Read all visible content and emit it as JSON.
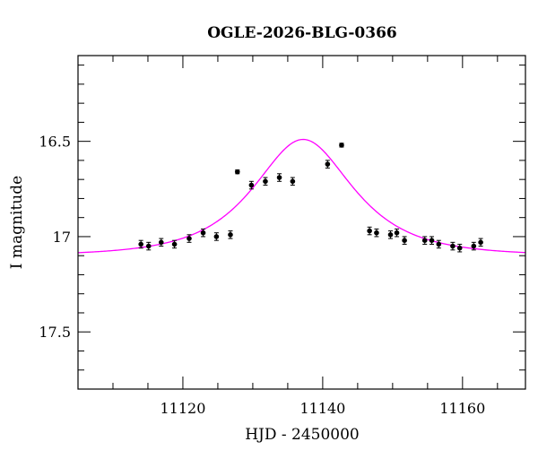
{
  "chart_data": {
    "type": "scatter",
    "title": "OGLE-2026-BLG-0366",
    "xlabel": "HJD - 2450000",
    "ylabel": "I magnitude",
    "xlim": [
      11105,
      11169
    ],
    "ylim": [
      17.8,
      16.05
    ],
    "y_inverted": true,
    "x_ticks": [
      11120,
      11140,
      11160
    ],
    "x_tick_labels": [
      "11120",
      "11140",
      "11160"
    ],
    "y_ticks": [
      16.5,
      17,
      17.5
    ],
    "y_tick_labels": [
      "16.5",
      "17",
      "17.5"
    ],
    "grid": false,
    "colors": {
      "model": "#ff00ff",
      "points": "#000000"
    },
    "series": [
      {
        "type": "scatter",
        "points": [
          {
            "x": 11114.0,
            "y": 17.04,
            "err": 0.02
          },
          {
            "x": 11115.1,
            "y": 17.05,
            "err": 0.02
          },
          {
            "x": 11116.9,
            "y": 17.03,
            "err": 0.02
          },
          {
            "x": 11118.8,
            "y": 17.04,
            "err": 0.02
          },
          {
            "x": 11120.9,
            "y": 17.01,
            "err": 0.02
          },
          {
            "x": 11122.9,
            "y": 16.98,
            "err": 0.02
          },
          {
            "x": 11124.8,
            "y": 17.0,
            "err": 0.02
          },
          {
            "x": 11126.8,
            "y": 16.99,
            "err": 0.02
          },
          {
            "x": 11127.8,
            "y": 16.66,
            "err": 0.01
          },
          {
            "x": 11129.8,
            "y": 16.73,
            "err": 0.02
          },
          {
            "x": 11131.8,
            "y": 16.71,
            "err": 0.02
          },
          {
            "x": 11133.8,
            "y": 16.69,
            "err": 0.02
          },
          {
            "x": 11135.7,
            "y": 16.71,
            "err": 0.02
          },
          {
            "x": 11140.7,
            "y": 16.62,
            "err": 0.02
          },
          {
            "x": 11142.7,
            "y": 16.52,
            "err": 0.01
          },
          {
            "x": 11146.7,
            "y": 16.97,
            "err": 0.02
          },
          {
            "x": 11147.7,
            "y": 16.98,
            "err": 0.02
          },
          {
            "x": 11149.7,
            "y": 16.99,
            "err": 0.02
          },
          {
            "x": 11150.6,
            "y": 16.98,
            "err": 0.02
          },
          {
            "x": 11151.7,
            "y": 17.02,
            "err": 0.02
          },
          {
            "x": 11154.6,
            "y": 17.02,
            "err": 0.02
          },
          {
            "x": 11155.6,
            "y": 17.02,
            "err": 0.02
          },
          {
            "x": 11156.6,
            "y": 17.04,
            "err": 0.02
          },
          {
            "x": 11158.6,
            "y": 17.05,
            "err": 0.02
          },
          {
            "x": 11159.6,
            "y": 17.06,
            "err": 0.02
          },
          {
            "x": 11161.6,
            "y": 17.05,
            "err": 0.02
          },
          {
            "x": 11162.6,
            "y": 17.03,
            "err": 0.02
          }
        ]
      },
      {
        "type": "line",
        "model": "point-lens microlensing fit",
        "t0": 11137.2,
        "tE": 10.0,
        "u0": 0.73,
        "baseline_mag": 17.1,
        "peak_mag": 16.49
      }
    ]
  }
}
